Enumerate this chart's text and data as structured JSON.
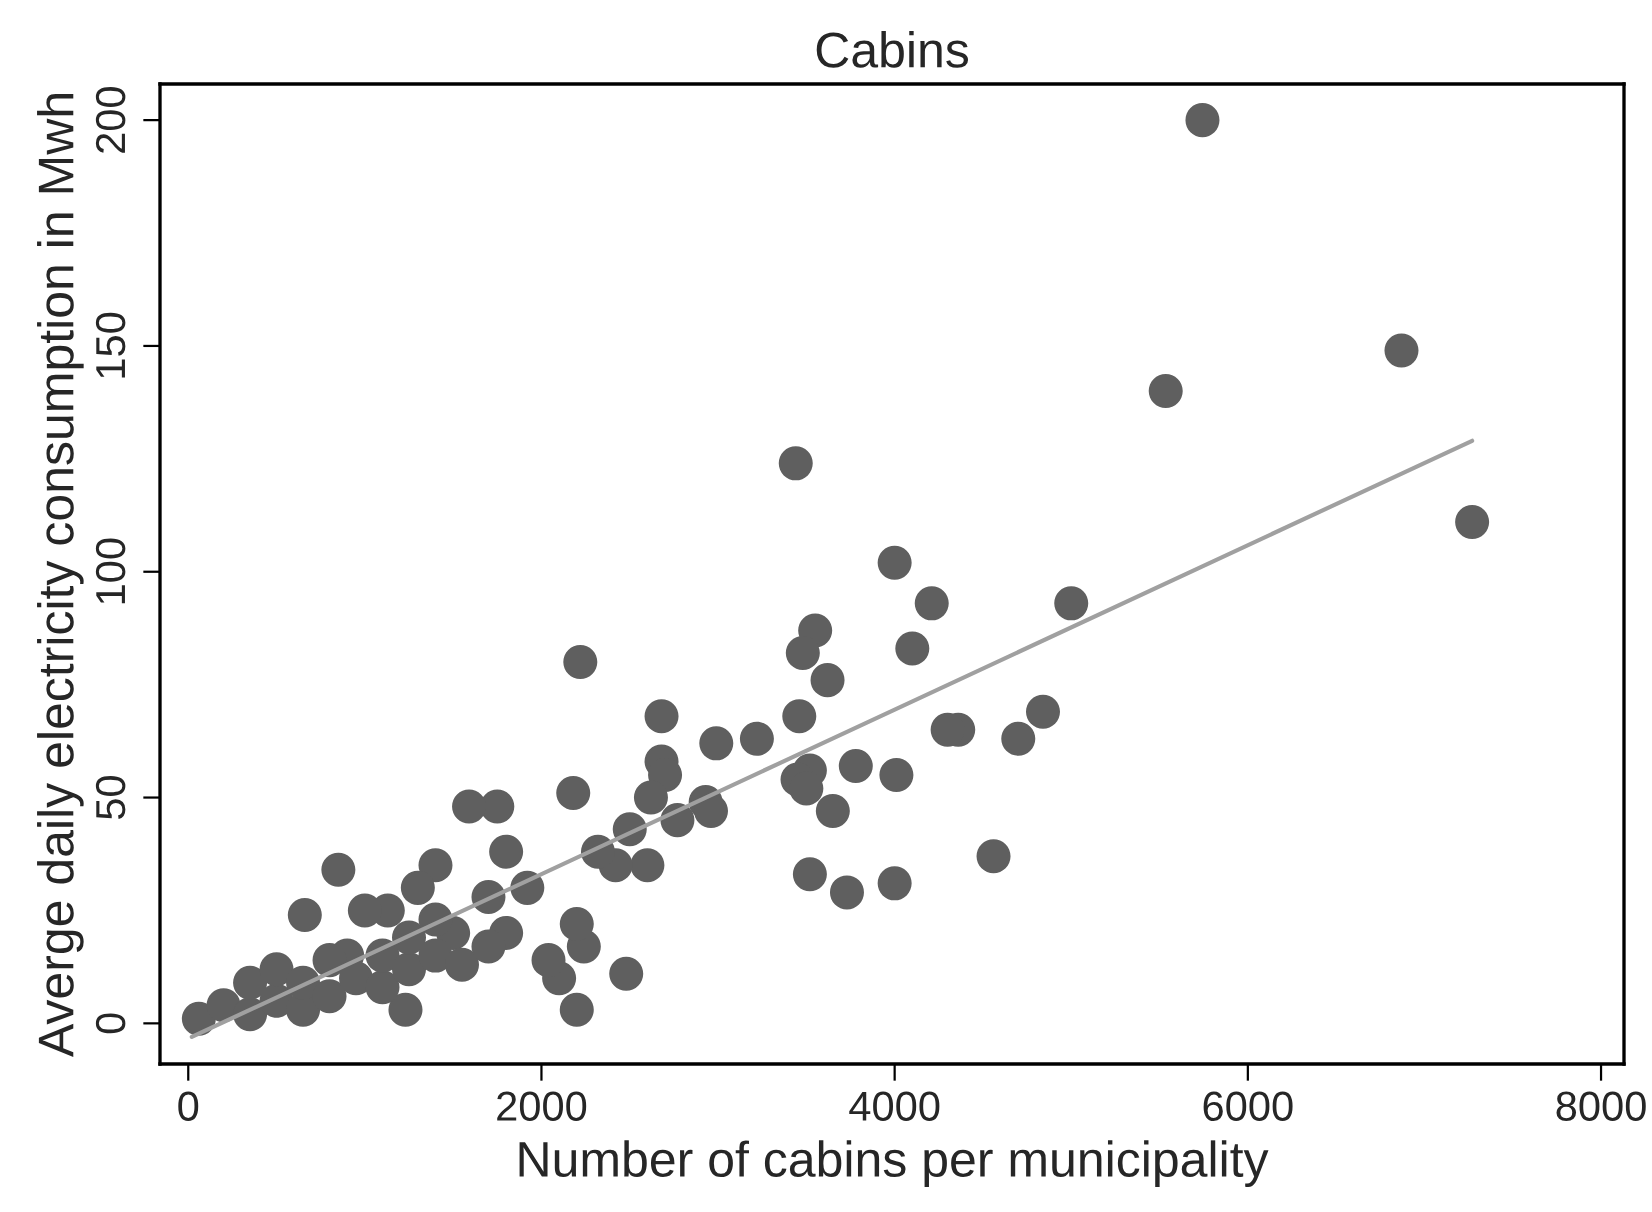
{
  "chart_data": {
    "type": "scatter",
    "title": "Cabins",
    "xlabel": "Number of cabins per municipality",
    "ylabel": "Averge daily electricity consumption in Mwh",
    "xlim": [
      -160,
      8130
    ],
    "ylim": [
      -9,
      208
    ],
    "xticks": [
      0,
      2000,
      4000,
      6000,
      8000
    ],
    "yticks": [
      0,
      50,
      100,
      150,
      200
    ],
    "grid": false,
    "legend": false,
    "series": [
      {
        "color": "#5f5f5f",
        "marker": "circle",
        "x": [
          5743,
          6870,
          5535,
          7270,
          3440,
          4000,
          4210,
          5000,
          3550,
          4100,
          3480,
          2220,
          3620,
          4840,
          2680,
          4700,
          3460,
          3220,
          2990,
          4360,
          4300,
          3780,
          3520,
          4010,
          3450,
          3500,
          3650,
          3520,
          3730,
          4000,
          4560,
          2680,
          2700,
          2620,
          2930,
          2960,
          2770,
          2500,
          2480,
          2200,
          2240,
          2100,
          2040,
          2200,
          2600,
          2420,
          2320,
          1750,
          1590,
          2180,
          1920,
          1800,
          1700,
          1400,
          1130,
          1000,
          850,
          660,
          1230,
          1500,
          1800,
          900,
          60,
          200,
          350,
          350,
          500,
          500,
          650,
          650,
          800,
          800,
          950,
          1100,
          1100,
          1250,
          1250,
          1300,
          1400,
          1400,
          1550,
          1700
        ],
        "values": [
          200,
          149,
          140,
          111,
          124,
          102,
          93,
          93,
          87,
          83,
          82,
          80,
          76,
          69,
          68,
          63,
          68,
          63,
          62,
          65,
          65,
          57,
          56,
          55,
          54,
          52,
          47,
          33,
          29,
          31,
          37,
          58,
          55,
          50,
          49,
          47,
          45,
          43,
          11,
          3,
          17,
          10,
          14,
          22,
          35,
          35,
          38,
          48,
          48,
          51,
          30,
          38,
          28,
          35,
          25,
          25,
          34,
          24,
          3,
          20,
          20,
          15,
          1,
          4,
          2,
          9,
          5,
          12,
          3,
          9,
          6,
          14,
          10,
          8,
          15,
          12,
          19,
          30,
          15,
          23,
          13,
          17
        ]
      },
      {
        "type": "line",
        "color": "#a0a0a0",
        "x": [
          20,
          7270
        ],
        "values": [
          -3,
          129
        ]
      }
    ]
  }
}
